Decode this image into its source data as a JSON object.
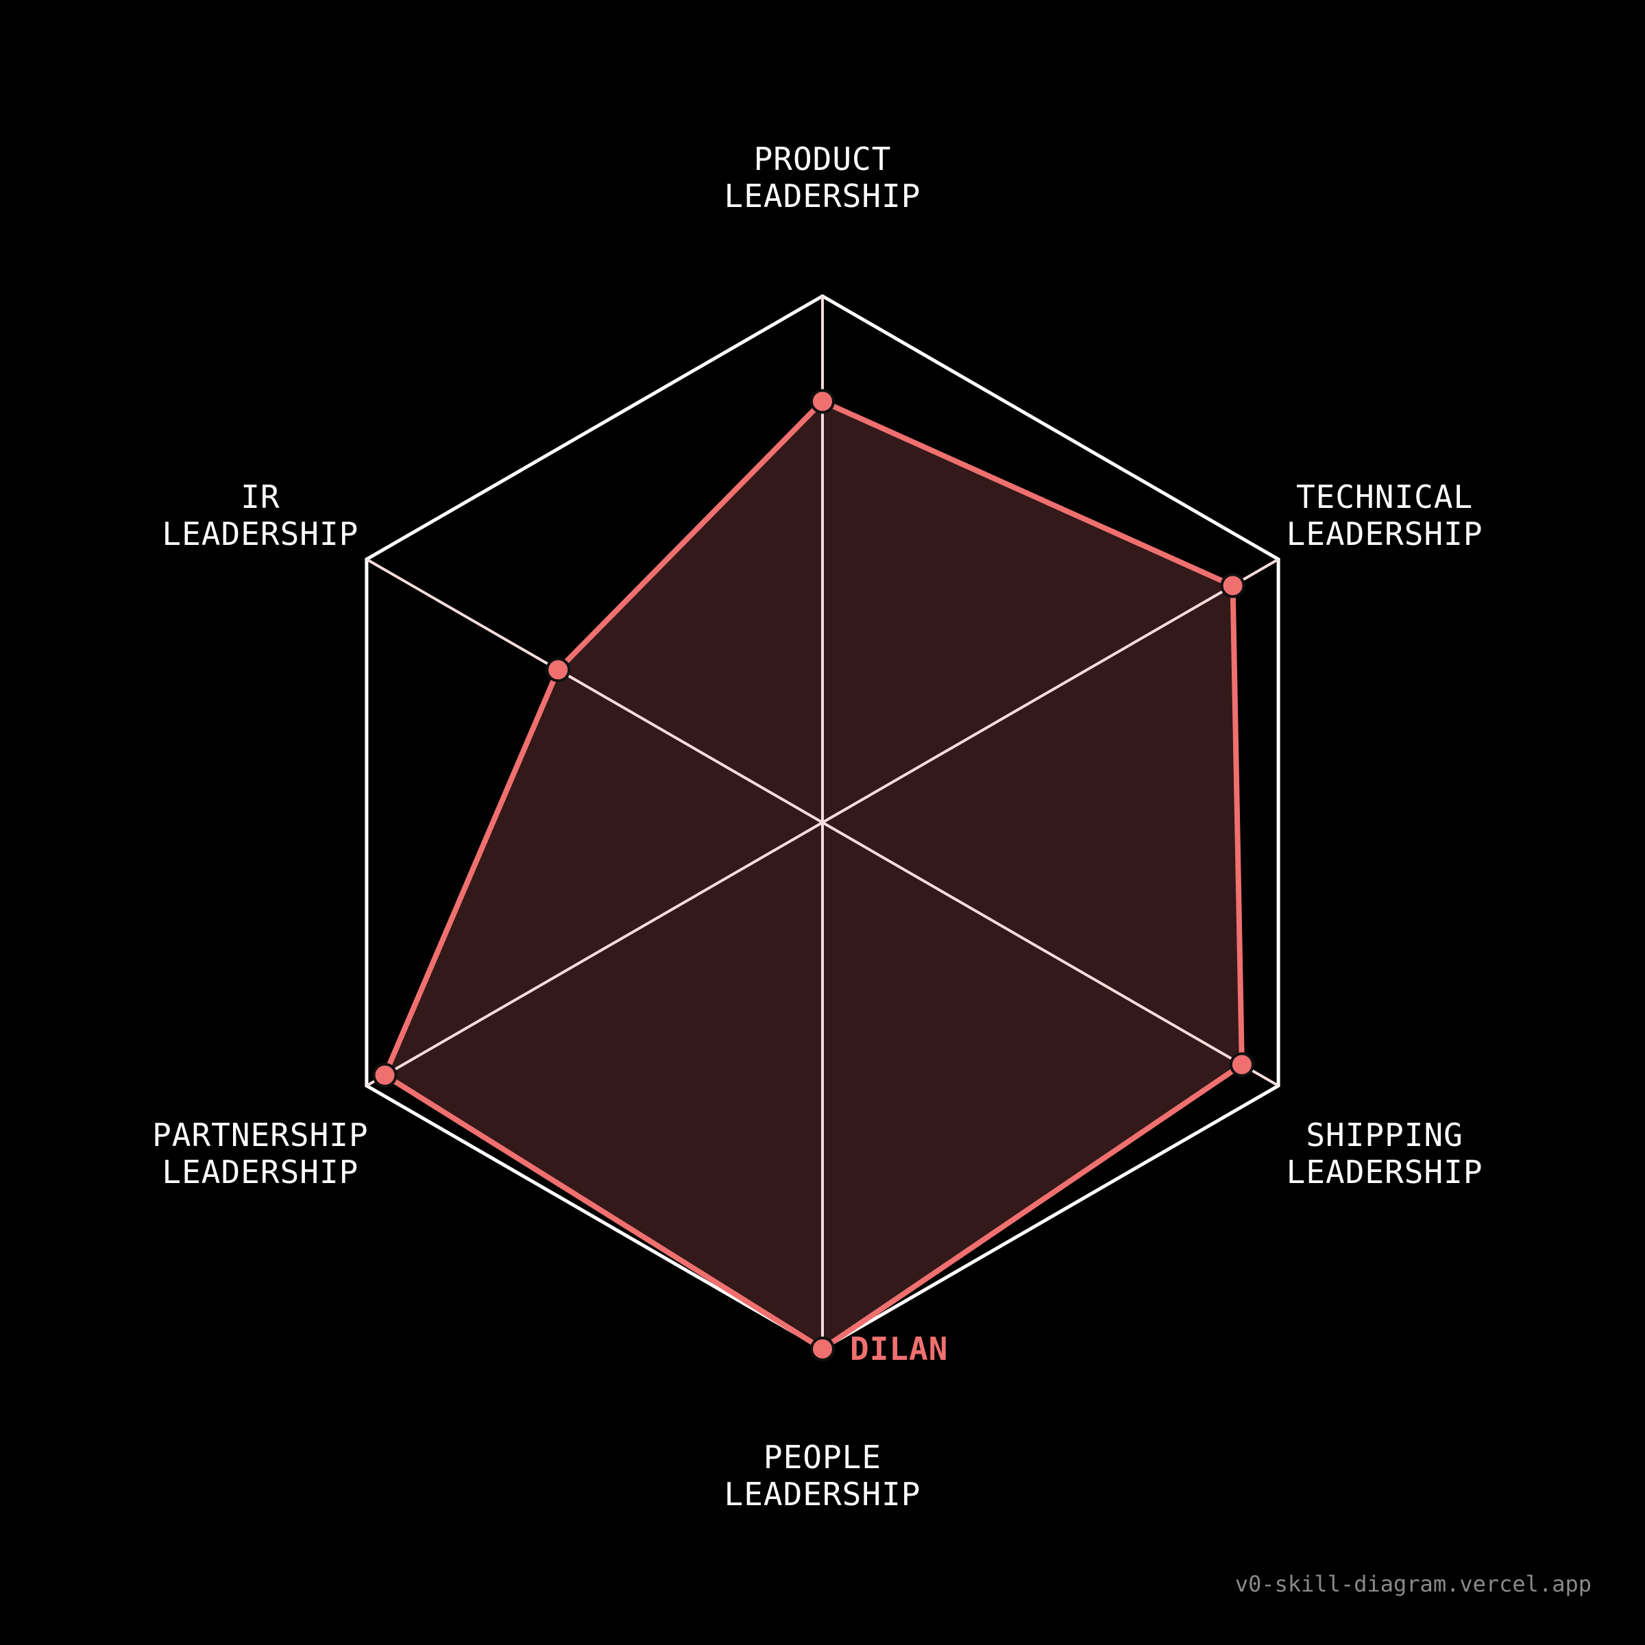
{
  "chart_data": {
    "type": "radar",
    "axes": [
      {
        "line1": "PRODUCT",
        "line2": "LEADERSHIP"
      },
      {
        "line1": "TECHNICAL",
        "line2": "LEADERSHIP"
      },
      {
        "line1": "SHIPPING",
        "line2": "LEADERSHIP"
      },
      {
        "line1": "PEOPLE",
        "line2": "LEADERSHIP"
      },
      {
        "line1": "PARTNERSHIP",
        "line2": "LEADERSHIP"
      },
      {
        "line1": "IR",
        "line2": "LEADERSHIP"
      }
    ],
    "range": [
      0,
      1
    ],
    "series": [
      {
        "name": "DILAN",
        "values": [
          0.8,
          0.9,
          0.92,
          1.0,
          0.96,
          0.58
        ]
      }
    ],
    "colors": {
      "background": "#000000",
      "grid": "#ffffff",
      "spokes": "#f6dcdc",
      "series": "#f07070",
      "fill": "#331919",
      "marker_outline": "#111111"
    }
  },
  "footer": {
    "text": "v0-skill-diagram.vercel.app"
  }
}
